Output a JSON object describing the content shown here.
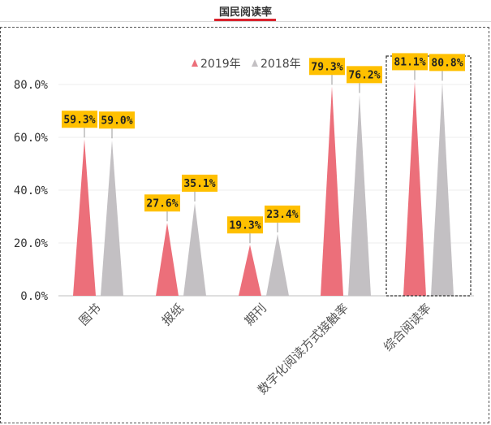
{
  "header": {
    "title": "国民阅读率"
  },
  "chart_data": {
    "type": "bar",
    "mark_shape": "triangle",
    "categories": [
      "图书",
      "报纸",
      "期刊",
      "数字化阅读方式接触率",
      "综合阅读率"
    ],
    "series": [
      {
        "name": "2019年",
        "values": [
          59.3,
          27.6,
          19.3,
          79.3,
          81.1
        ],
        "labels": [
          "59.3%",
          "27.6%",
          "19.3%",
          "79.3%",
          "81.1%"
        ],
        "color": "#ec6f7a"
      },
      {
        "name": "2018年",
        "values": [
          59.0,
          35.1,
          23.4,
          76.2,
          80.8
        ],
        "labels": [
          "59.0%",
          "35.1%",
          "23.4%",
          "76.2%",
          "80.8%"
        ],
        "color": "#c3c0c3"
      }
    ],
    "ylim": [
      0,
      80
    ],
    "yticks": [
      0,
      20,
      40,
      60,
      80
    ],
    "ytick_labels": [
      "0.0%",
      "20.0%",
      "40.0%",
      "60.0%",
      "80.0%"
    ],
    "title": "",
    "xlabel": "",
    "ylabel": "",
    "grid": true,
    "legend_position": "top-right",
    "data_label_color": "#ffc000",
    "highlighted_category": "综合阅读率"
  }
}
